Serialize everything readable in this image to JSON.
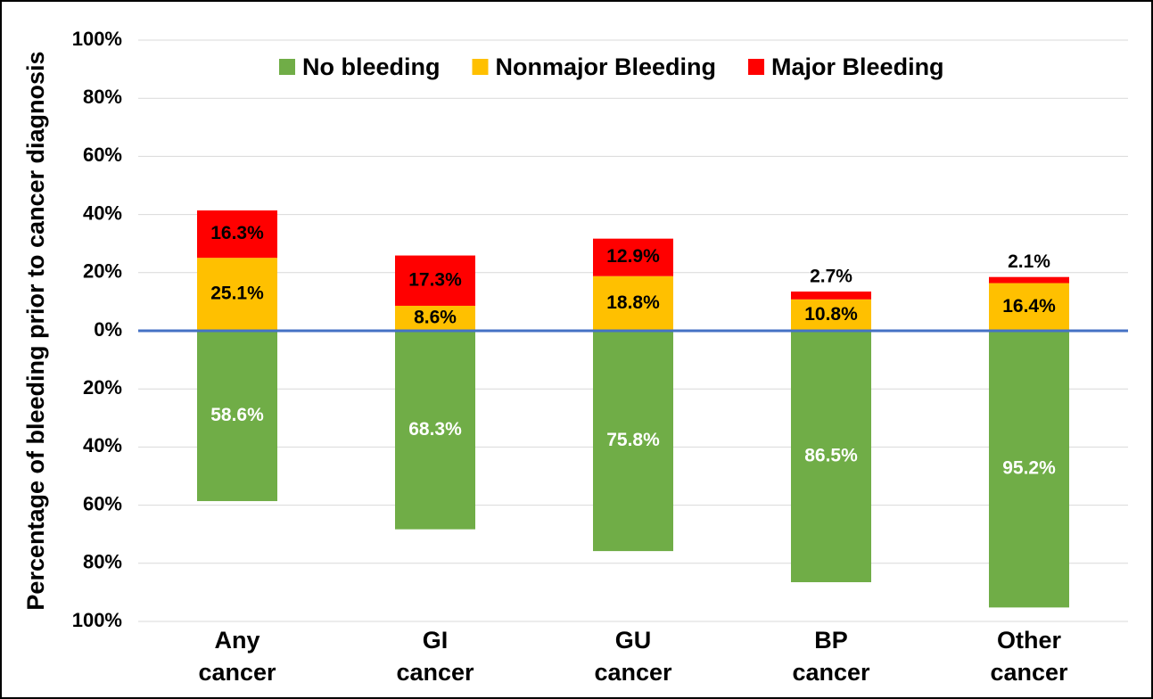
{
  "chart_data": {
    "type": "diverging-stacked-bar",
    "y_label": "Percentage of bleeding prior to cancer diagnosis",
    "categories": [
      "Any cancer",
      "GI cancer",
      "GU cancer",
      "BP cancer",
      "Other cancer"
    ],
    "series": [
      {
        "name": "No bleeding",
        "color": "#70ad47",
        "label_color": "#ffffff",
        "values": [
          -58.6,
          -68.3,
          -75.8,
          -86.5,
          -95.2
        ],
        "value_labels": [
          "58.6%",
          "68.3%",
          "75.8%",
          "86.5%",
          "95.2%"
        ]
      },
      {
        "name": "Nonmajor Bleeding",
        "color": "#ffc000",
        "label_color": "#000000",
        "values": [
          25.1,
          8.6,
          18.8,
          10.8,
          16.4
        ],
        "value_labels": [
          "25.1%",
          "8.6%",
          "18.8%",
          "10.8%",
          "16.4%"
        ]
      },
      {
        "name": "Major Bleeding",
        "color": "#ff0000",
        "label_color": "#000000",
        "values": [
          16.3,
          17.3,
          12.9,
          2.7,
          2.1
        ],
        "value_labels": [
          "16.3%",
          "17.3%",
          "12.9%",
          "2.7%",
          "2.1%"
        ]
      }
    ],
    "ylim": [
      -100,
      100
    ],
    "yticks": [
      {
        "value": -100,
        "label": "100%"
      },
      {
        "value": -80,
        "label": "80%"
      },
      {
        "value": -60,
        "label": "60%"
      },
      {
        "value": -40,
        "label": "40%"
      },
      {
        "value": -20,
        "label": "20%"
      },
      {
        "value": 0,
        "label": "0%"
      },
      {
        "value": 20,
        "label": "20%"
      },
      {
        "value": 40,
        "label": "40%"
      },
      {
        "value": 60,
        "label": "60%"
      },
      {
        "value": 80,
        "label": "80%"
      },
      {
        "value": 100,
        "label": "100%"
      }
    ],
    "grid": true,
    "zero_line_color": "#4472c4",
    "legend": "top"
  }
}
